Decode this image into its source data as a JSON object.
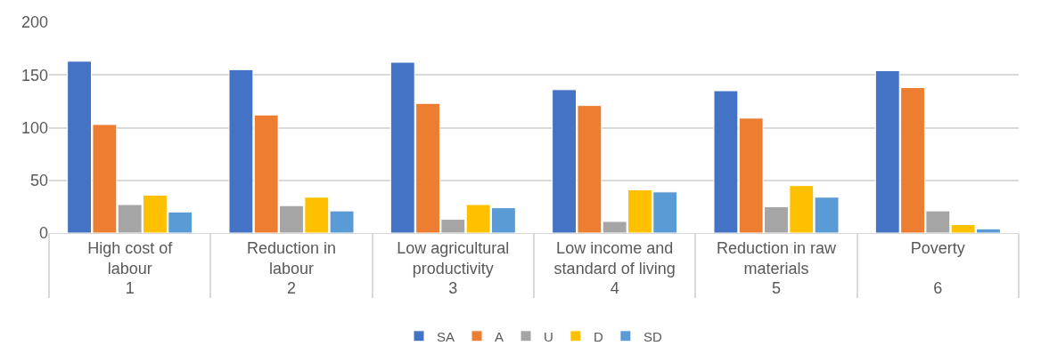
{
  "chart_data": {
    "type": "bar",
    "categories": [
      "High cost of labour",
      "Reduction in labour",
      "Low agricultural productivity",
      "Low income and standard of living",
      "Reduction in raw materials",
      "Poverty"
    ],
    "annotations": [
      "1",
      "2",
      "3",
      "4",
      "5",
      "6"
    ],
    "series": [
      {
        "name": "SA",
        "color": "#4472c4",
        "values": [
          163,
          155,
          162,
          136,
          135,
          154
        ]
      },
      {
        "name": "A",
        "color": "#ed7d31",
        "values": [
          103,
          112,
          123,
          121,
          109,
          138
        ]
      },
      {
        "name": "U",
        "color": "#a5a5a5",
        "values": [
          27,
          26,
          13,
          11,
          25,
          21
        ]
      },
      {
        "name": "D",
        "color": "#ffc000",
        "values": [
          36,
          34,
          27,
          41,
          45,
          8
        ]
      },
      {
        "name": "SD",
        "color": "#5b9bd5",
        "values": [
          20,
          21,
          24,
          39,
          34,
          4
        ]
      }
    ],
    "ylim": [
      0,
      200
    ],
    "yticks": [
      0,
      50,
      100,
      150,
      200
    ],
    "grid": "y",
    "legend": "bottom"
  }
}
